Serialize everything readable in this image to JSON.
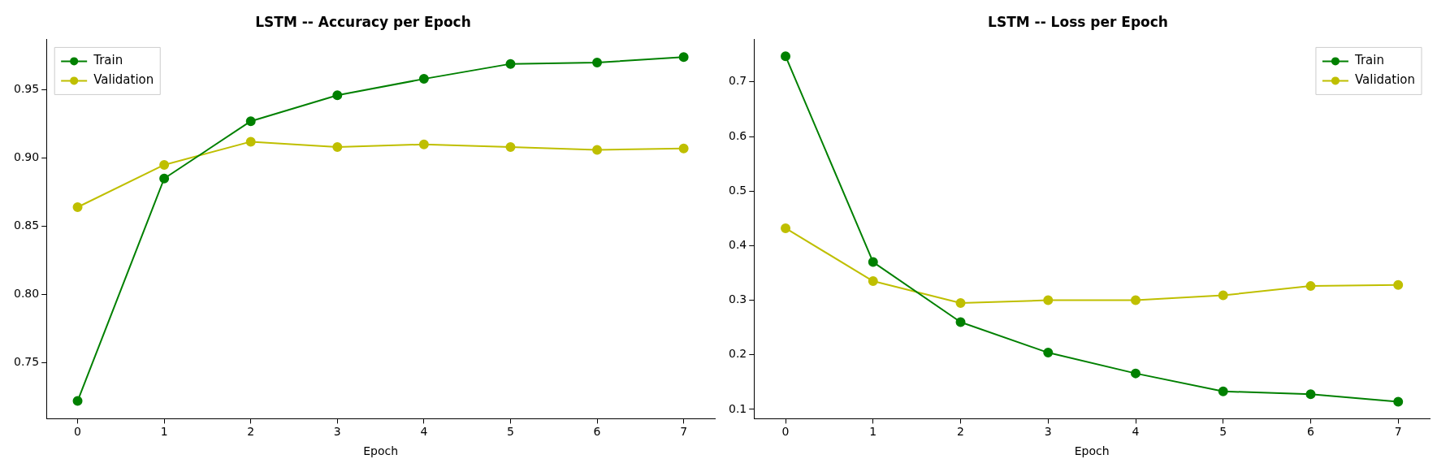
{
  "chart_data": [
    {
      "type": "line",
      "title": "LSTM -- Accuracy per Epoch",
      "xlabel": "Epoch",
      "x": [
        0,
        1,
        2,
        3,
        4,
        5,
        6,
        7
      ],
      "xlim": [
        -0.36,
        7.36
      ],
      "xticks": [
        0,
        1,
        2,
        3,
        4,
        5,
        6,
        7
      ],
      "ylim": [
        0.709,
        0.987
      ],
      "yticks": [
        {
          "value": 0.75,
          "label": "0.75"
        },
        {
          "value": 0.8,
          "label": "0.80"
        },
        {
          "value": 0.85,
          "label": "0.85"
        },
        {
          "value": 0.9,
          "label": "0.90"
        },
        {
          "value": 0.95,
          "label": "0.95"
        }
      ],
      "grid": false,
      "legend": "top left",
      "marker": "circle",
      "line_style": "solid",
      "series": [
        {
          "name": "Train",
          "color": "#008000",
          "values": [
            0.722,
            0.885,
            0.927,
            0.946,
            0.958,
            0.969,
            0.97,
            0.974
          ]
        },
        {
          "name": "Validation",
          "color": "#bfbf00",
          "values": [
            0.864,
            0.895,
            0.912,
            0.908,
            0.91,
            0.908,
            0.906,
            0.907
          ]
        }
      ]
    },
    {
      "type": "line",
      "title": "LSTM -- Loss per Epoch",
      "xlabel": "Epoch",
      "x": [
        0,
        1,
        2,
        3,
        4,
        5,
        6,
        7
      ],
      "xlim": [
        -0.36,
        7.36
      ],
      "xticks": [
        0,
        1,
        2,
        3,
        4,
        5,
        6,
        7
      ],
      "ylim": [
        0.083,
        0.778
      ],
      "yticks": [
        0.1,
        0.2,
        0.3,
        0.4,
        0.5,
        0.6,
        0.7
      ],
      "grid": false,
      "legend": "top right",
      "marker": "circle",
      "line_style": "solid",
      "series": [
        {
          "name": "Train",
          "color": "#008000",
          "values": [
            0.747,
            0.37,
            0.26,
            0.204,
            0.166,
            0.133,
            0.128,
            0.114
          ]
        },
        {
          "name": "Validation",
          "color": "#bfbf00",
          "values": [
            0.432,
            0.335,
            0.295,
            0.3,
            0.3,
            0.309,
            0.326,
            0.328
          ]
        }
      ]
    }
  ]
}
